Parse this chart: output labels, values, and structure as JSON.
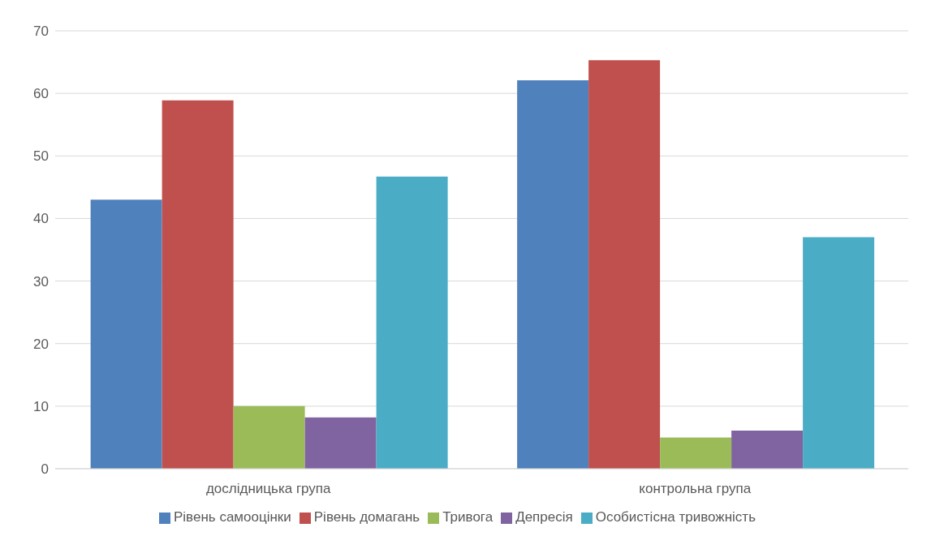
{
  "chart_data": {
    "type": "bar",
    "categories": [
      "дослідницька група",
      "контрольна група"
    ],
    "series": [
      {
        "name": "Рівень самооцінки",
        "color": "#4f81bd",
        "values": [
          43,
          62.1
        ]
      },
      {
        "name": "Рівень домагань",
        "color": "#c0504d",
        "values": [
          58.9,
          65.3
        ]
      },
      {
        "name": "Тривога",
        "color": "#9bbb59",
        "values": [
          10,
          5
        ]
      },
      {
        "name": "Депресія",
        "color": "#8064a2",
        "values": [
          8.2,
          6.1
        ]
      },
      {
        "name": "Особистісна тривожність",
        "color": "#4bacc6",
        "values": [
          46.7,
          37
        ]
      }
    ],
    "ylim": [
      0,
      70
    ],
    "yticks": [
      0,
      10,
      20,
      30,
      40,
      50,
      60,
      70
    ],
    "grid": "y",
    "legend": "bottom"
  }
}
